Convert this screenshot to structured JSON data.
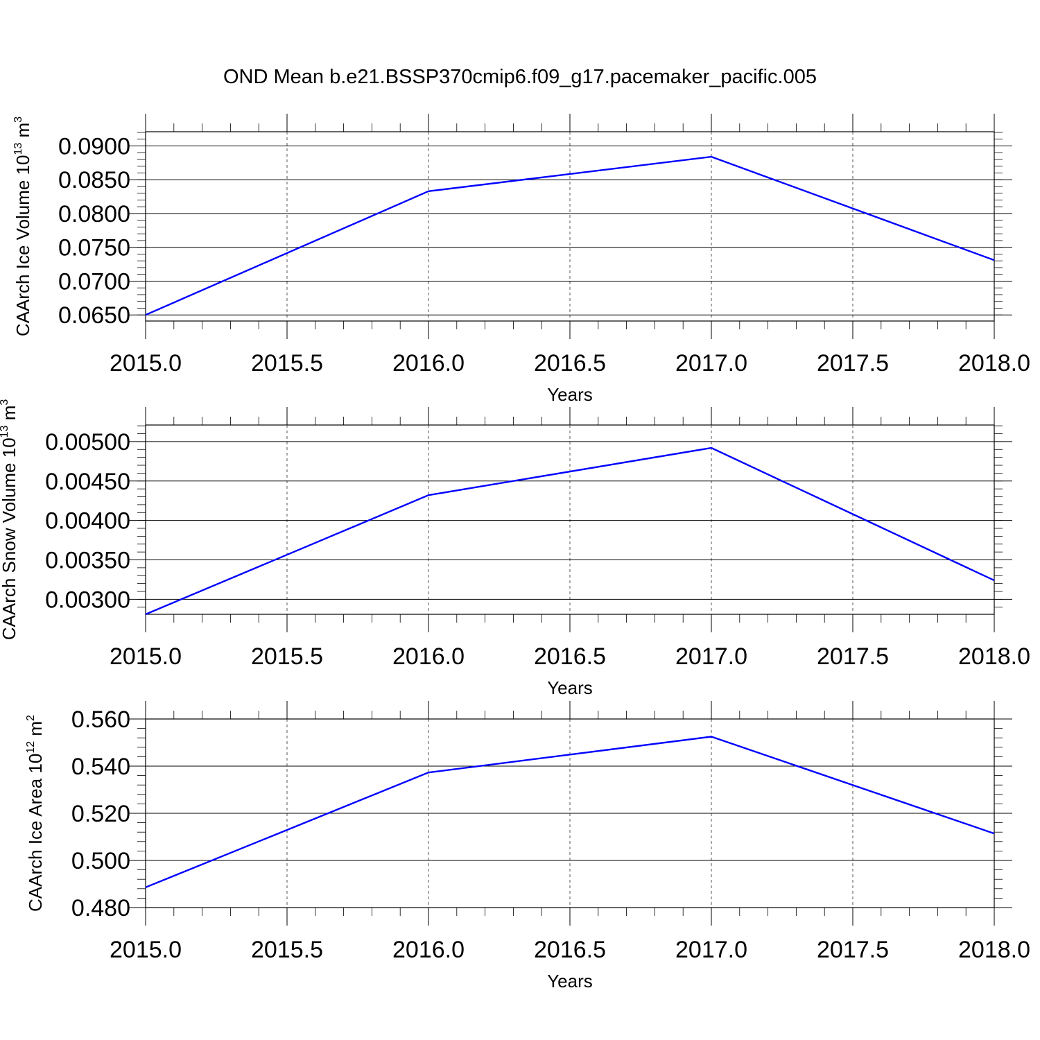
{
  "title": "OND Mean b.e21.BSSP370cmip6.f09_g17.pacemaker_pacific.005",
  "chart_data": [
    {
      "type": "line",
      "x": [
        2015.0,
        2016.0,
        2017.0,
        2018.0
      ],
      "series": [
        {
          "values": [
            0.065,
            0.0833,
            0.0884,
            0.0731
          ],
          "color": "#0000ff"
        }
      ],
      "xlabel": "Years",
      "ylabel": "CAArch Ice Volume 10",
      "ylabel_exp": "13",
      "ylabel_unit": "m",
      "ylabel_unit_exp": "3",
      "xlim": [
        2015.0,
        2018.0
      ],
      "ylim": [
        0.0641,
        0.0921
      ],
      "xticks": [
        2015.0,
        2015.5,
        2016.0,
        2016.5,
        2017.0,
        2017.5,
        2018.0
      ],
      "xtick_labels": [
        "2015.0",
        "2015.5",
        "2016.0",
        "2016.5",
        "2017.0",
        "2017.5",
        "2018.0"
      ],
      "yticks": [
        0.065,
        0.07,
        0.075,
        0.08,
        0.085,
        0.09
      ],
      "ytick_labels": [
        "0.0650",
        "0.0700",
        "0.0750",
        "0.0800",
        "0.0850",
        "0.0900"
      ],
      "ytick_minor": 0.001,
      "grid": "vertical dashed"
    },
    {
      "type": "line",
      "x": [
        2015.0,
        2016.0,
        2017.0,
        2018.0
      ],
      "series": [
        {
          "values": [
            0.00281,
            0.00432,
            0.00492,
            0.00324
          ],
          "color": "#0000ff"
        }
      ],
      "xlabel": "Years",
      "ylabel": "CAArch Snow Volume 10",
      "ylabel_exp": "13",
      "ylabel_unit": "m",
      "ylabel_unit_exp": "3",
      "xlim": [
        2015.0,
        2018.0
      ],
      "ylim": [
        0.00281,
        0.00521
      ],
      "xticks": [
        2015.0,
        2015.5,
        2016.0,
        2016.5,
        2017.0,
        2017.5,
        2018.0
      ],
      "xtick_labels": [
        "2015.0",
        "2015.5",
        "2016.0",
        "2016.5",
        "2017.0",
        "2017.5",
        "2018.0"
      ],
      "yticks": [
        0.003,
        0.0035,
        0.004,
        0.0045,
        0.005
      ],
      "ytick_labels": [
        "0.00300",
        "0.00350",
        "0.00400",
        "0.00450",
        "0.00500"
      ],
      "ytick_minor": 0.0001,
      "grid": "vertical dashed"
    },
    {
      "type": "line",
      "x": [
        2015.0,
        2016.0,
        2017.0,
        2018.0
      ],
      "series": [
        {
          "values": [
            0.4886,
            0.5373,
            0.5525,
            0.5114
          ],
          "color": "#0000ff"
        }
      ],
      "xlabel": "Years",
      "ylabel": "CAArch Ice Area 10",
      "ylabel_exp": "12",
      "ylabel_unit": "m",
      "ylabel_unit_exp": "2",
      "xlim": [
        2015.0,
        2018.0
      ],
      "ylim": [
        0.48,
        0.56
      ],
      "xticks": [
        2015.0,
        2015.5,
        2016.0,
        2016.5,
        2017.0,
        2017.5,
        2018.0
      ],
      "xtick_labels": [
        "2015.0",
        "2015.5",
        "2016.0",
        "2016.5",
        "2017.0",
        "2017.5",
        "2018.0"
      ],
      "yticks": [
        0.48,
        0.5,
        0.52,
        0.54,
        0.56
      ],
      "ytick_labels": [
        "0.480",
        "0.500",
        "0.520",
        "0.540",
        "0.560"
      ],
      "ytick_minor": 0.004,
      "grid": "vertical dashed"
    }
  ]
}
